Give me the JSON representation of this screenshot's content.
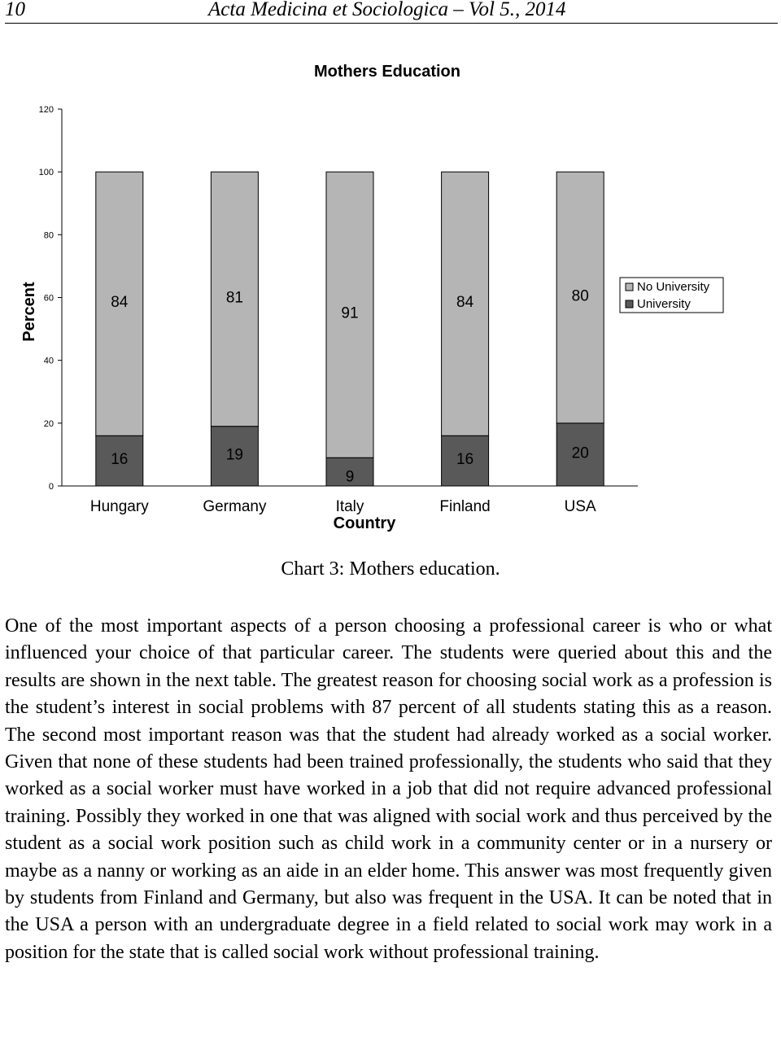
{
  "header": {
    "page_number": "10",
    "journal": "Acta Medicina et Sociologica – Vol 5., 2014"
  },
  "chart_data": {
    "type": "bar",
    "stacked": true,
    "title": "Mothers Education",
    "xlabel": "Country",
    "ylabel": "Percent",
    "categories": [
      "Hungary",
      "Germany",
      "Italy",
      "Finland",
      "USA"
    ],
    "series": [
      {
        "name": "University",
        "values": [
          16,
          19,
          9,
          16,
          20
        ],
        "color": "#595959"
      },
      {
        "name": "No University",
        "values": [
          84,
          81,
          91,
          84,
          80
        ],
        "color": "#b5b5b5"
      }
    ],
    "ylim": [
      0,
      120
    ],
    "yticks": [
      "0",
      "20",
      "40",
      "60",
      "80",
      "100",
      "120"
    ],
    "legend_order": [
      "No University",
      "University"
    ],
    "legend": "right",
    "grid": false
  },
  "caption": "Chart 3: Mothers education.",
  "paragraph": "One of the most important aspects of a person choosing a professional career is who or what influenced your choice of that particular career. The students were queried about this and the results are shown in the next table. The greatest reason for choosing social work as a profession is the student’s interest in social problems with 87 percent of all students stating this as a reason. The second most important reason was that the student had already worked as a social worker. Given that none of these students had been trained professionally, the students who said that they worked as a social worker must have worked in a job that did not require advanced professional training. Possibly they worked in one that was aligned with social work and thus perceived by the student as a social work position such as child work in a community center or in a nursery or maybe as a nanny or working as an aide in an elder home. This answer was most frequently given by students from Finland and Germany, but also was frequent in the USA. It can be noted that in the USA a person with an undergraduate degree in a field related to social work may work in a position for the state that is called social work without professional training."
}
